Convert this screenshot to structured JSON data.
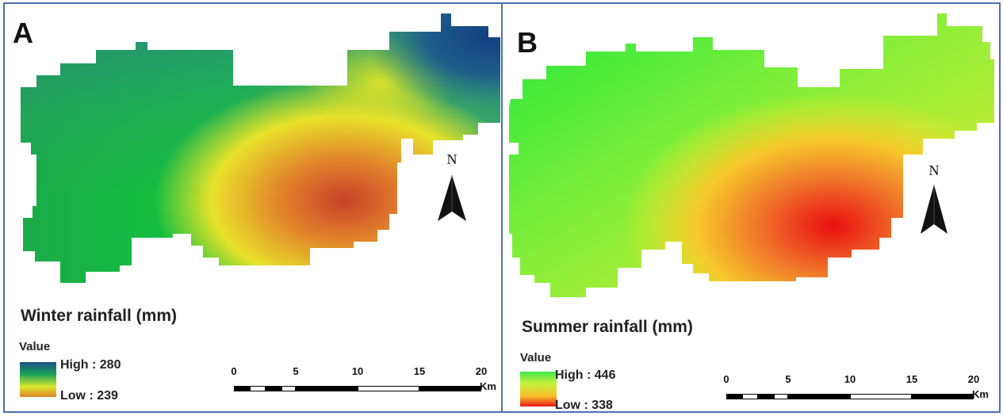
{
  "panels": [
    {
      "letter": "A",
      "title": "Winter rainfall (mm)",
      "legend": {
        "heading": "Value",
        "high_label": "High : 280",
        "low_label": "Low : 239",
        "high_value": 280,
        "low_value": 239,
        "ramp_colors": [
          "#1d4f86",
          "#1aa35a",
          "#d9e82a",
          "#e0842a"
        ]
      },
      "north_label": "N",
      "scale": {
        "ticks": [
          "0",
          "5",
          "10",
          "15",
          "20"
        ],
        "unit": "Km"
      }
    },
    {
      "letter": "B",
      "title": "Summer rainfall (mm)",
      "legend": {
        "heading": "Value",
        "high_label": "High : 446",
        "low_label": "Low : 338",
        "high_value": 446,
        "low_value": 338,
        "ramp_colors": [
          "#3fe84a",
          "#c8f03a",
          "#f7c02a",
          "#e81a14"
        ]
      },
      "north_label": "N",
      "scale": {
        "ticks": [
          "0",
          "5",
          "10",
          "15",
          "20"
        ],
        "unit": "Km"
      }
    }
  ]
}
